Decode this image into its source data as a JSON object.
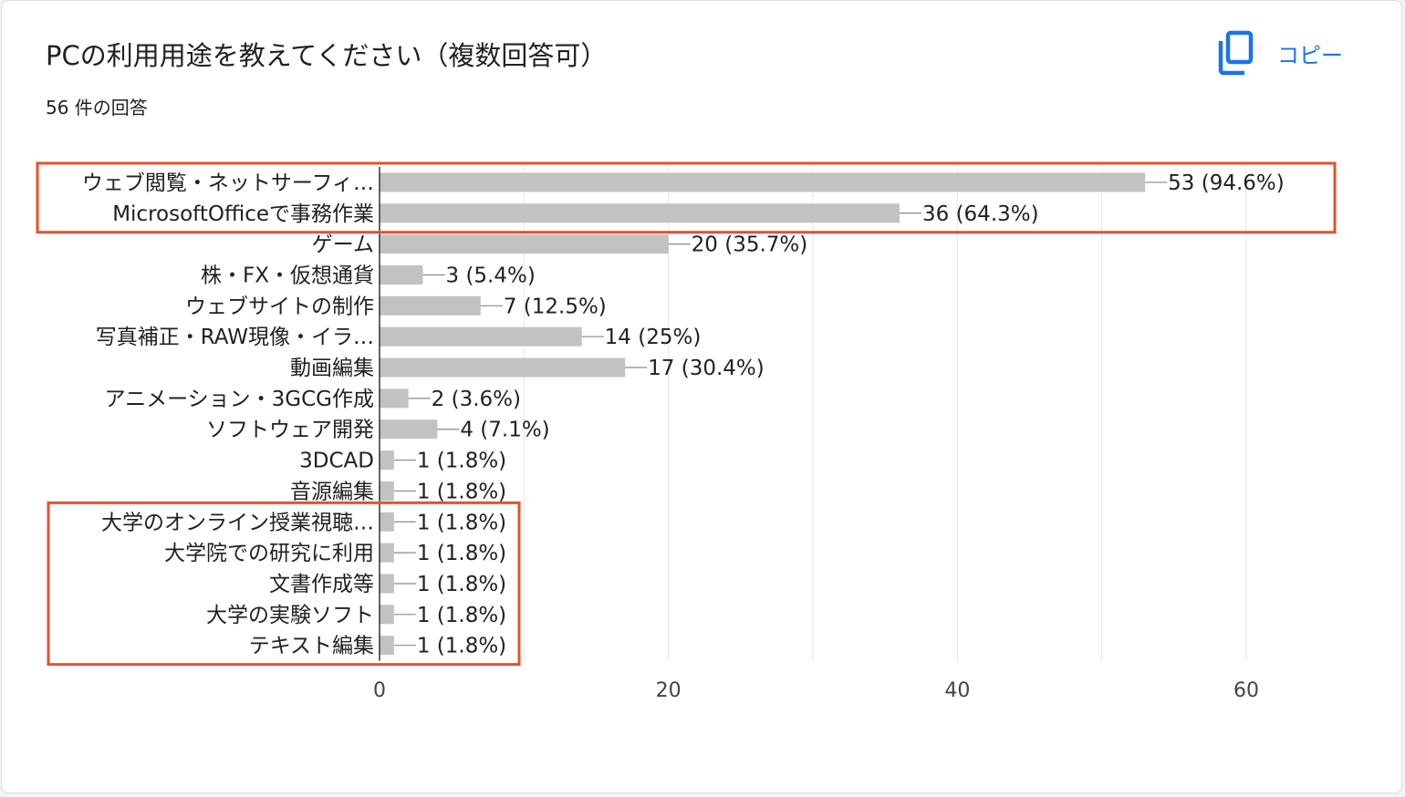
{
  "header": {
    "title": "PCの利用用途を教えてください（複数回答可）",
    "response_count": "56 件の回答",
    "copy_label": "コピー"
  },
  "colors": {
    "bar": "#c4c1c1",
    "highlight_box": "#e8502b",
    "grid": "#e6e6e6",
    "axis": "#333333",
    "copy_accent": "#1a73e8"
  },
  "highlights": [
    {
      "from_index": 0,
      "to_index": 1
    },
    {
      "from_index": 11,
      "to_index": 15
    }
  ],
  "chart_data": {
    "type": "bar",
    "orientation": "horizontal",
    "categories": [
      "ウェブ閲覧・ネットサーフィ…",
      "MicrosoftOfficeで事務作業",
      "ゲーム",
      "株・FX・仮想通貨",
      "ウェブサイトの制作",
      "写真補正・RAW現像・イラ…",
      "動画編集",
      "アニメーション・3GCG作成",
      "ソフトウェア開発",
      "3DCAD",
      "音源編集",
      "大学のオンライン授業視聴…",
      "大学院での研究に利用",
      "文書作成等",
      "大学の実験ソフト",
      "テキスト編集"
    ],
    "values": [
      53,
      36,
      20,
      3,
      7,
      14,
      17,
      2,
      4,
      1,
      1,
      1,
      1,
      1,
      1,
      1
    ],
    "value_labels": [
      "53 (94.6%)",
      "36 (64.3%)",
      "20 (35.7%)",
      "3 (5.4%)",
      "7 (12.5%)",
      "14 (25%)",
      "17 (30.4%)",
      "2 (3.6%)",
      "4 (7.1%)",
      "1 (1.8%)",
      "1 (1.8%)",
      "1 (1.8%)",
      "1 (1.8%)",
      "1 (1.8%)",
      "1 (1.8%)",
      "1 (1.8%)"
    ],
    "xlim": [
      0,
      60
    ],
    "xticks": [
      0,
      20,
      40,
      60
    ],
    "grid": true
  }
}
